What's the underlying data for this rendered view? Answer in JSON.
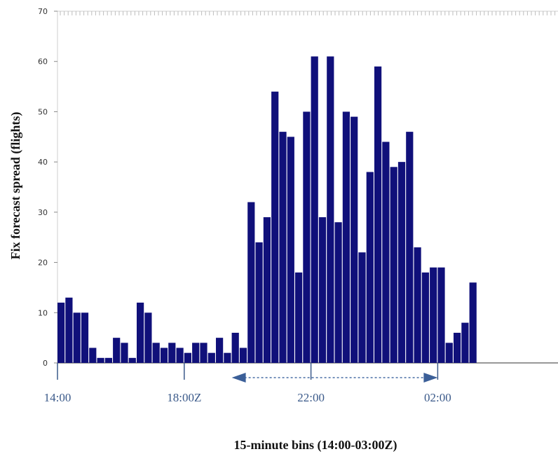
{
  "chart_data": {
    "type": "bar",
    "title": "",
    "xlabel": "15-minute bins (14:00-03:00Z)",
    "ylabel": "Fix forecast spread (flights)",
    "ylim": [
      0,
      70
    ],
    "y_ticks": [
      0,
      10,
      20,
      30,
      40,
      50,
      60,
      70
    ],
    "x_tick_labels": [
      {
        "label": "14:00",
        "time": "14:00"
      },
      {
        "label": "18:00Z",
        "time": "18:00"
      },
      {
        "label": "22:00",
        "time": "22:00"
      },
      {
        "label": "02:00",
        "time": "02:00"
      }
    ],
    "bin_minutes": 15,
    "start_time": "14:00",
    "values": [
      12,
      13,
      10,
      10,
      3,
      1,
      1,
      5,
      4,
      1,
      12,
      10,
      4,
      3,
      4,
      3,
      2,
      4,
      4,
      2,
      5,
      2,
      6,
      3,
      32,
      24,
      29,
      54,
      46,
      45,
      18,
      50,
      61,
      29,
      61,
      28,
      50,
      49,
      22,
      38,
      59,
      44,
      39,
      40,
      46,
      23,
      18,
      19,
      19,
      4,
      6,
      8,
      16
    ],
    "highlight_range": {
      "from": "19:30",
      "to": "02:00"
    },
    "grid": false,
    "bar_color": "#10107a"
  }
}
